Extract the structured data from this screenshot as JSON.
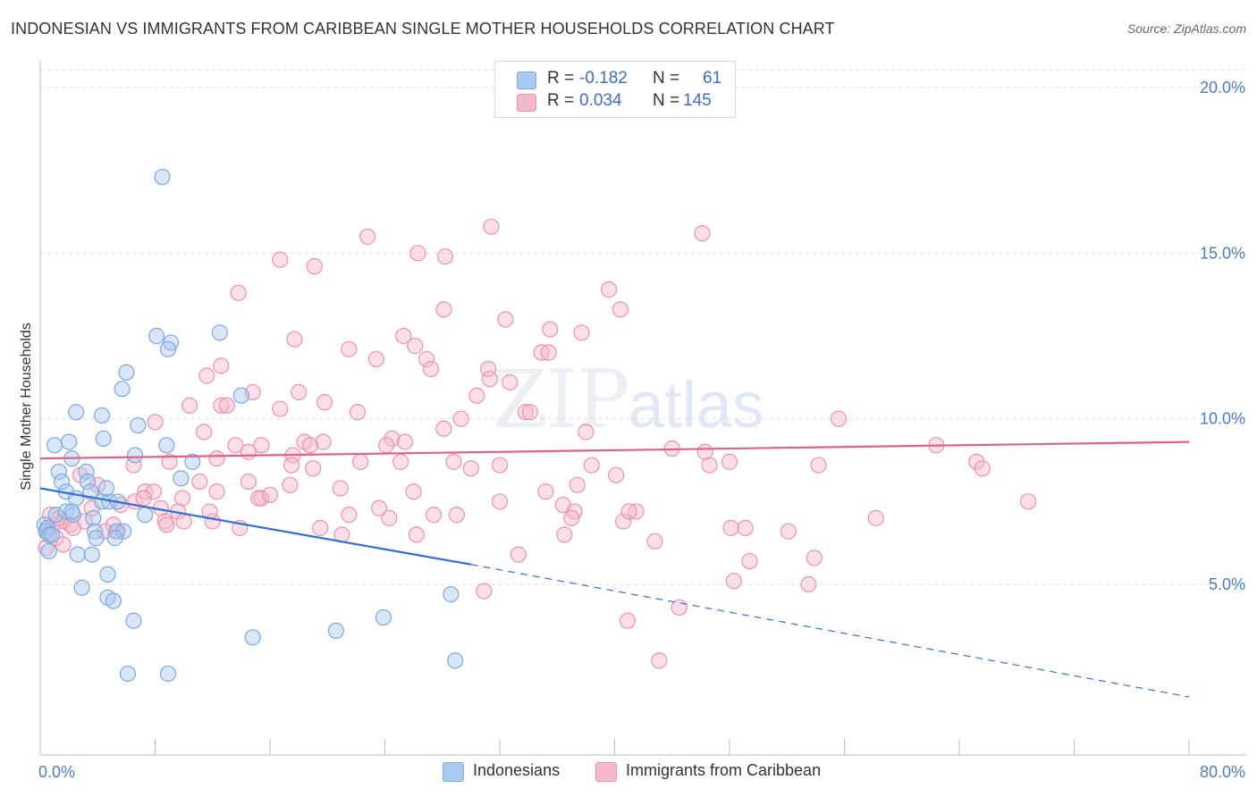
{
  "title": "INDONESIAN VS IMMIGRANTS FROM CARIBBEAN SINGLE MOTHER HOUSEHOLDS CORRELATION CHART",
  "source": "Source: ZipAtlas.com",
  "watermark": {
    "zip": "ZIP",
    "atlas": "atlas"
  },
  "colors": {
    "blue_fill": "#aac8f0",
    "blue_stroke": "#7aa8e0",
    "blue_line": "#2f6fd6",
    "pink_fill": "#f5b8cc",
    "pink_stroke": "#ee8fae",
    "pink_line": "#e0608a",
    "axis_text": "#4a7cc4",
    "grid": "#dcdcdc"
  },
  "stats": {
    "rows": [
      {
        "r_label": "R =",
        "r_value": "-0.182",
        "n_label": "N =",
        "n_value": "61"
      },
      {
        "r_label": "R =",
        "r_value": "0.034",
        "n_label": "N =",
        "n_value": "145"
      }
    ]
  },
  "legend": {
    "items": [
      "Indonesians",
      "Immigrants from Caribbean"
    ]
  },
  "chart_data": {
    "type": "scatter",
    "title": "INDONESIAN VS IMMIGRANTS FROM CARIBBEAN SINGLE MOTHER HOUSEHOLDS CORRELATION CHART",
    "xlabel": "",
    "ylabel": "Single Mother Households",
    "xlim": [
      0,
      80
    ],
    "ylim": [
      0,
      21
    ],
    "x_ticks": [
      "0.0%",
      "80.0%"
    ],
    "y_ticks": [
      "5.0%",
      "10.0%",
      "15.0%",
      "20.0%"
    ],
    "y_tick_values": [
      5,
      10,
      15,
      20
    ],
    "grid": true,
    "legend_position": "bottom-center",
    "series": [
      {
        "name": "Indonesians",
        "color": "#aac8f0",
        "trend": {
          "x": [
            0,
            30
          ],
          "y": [
            7.9,
            5.6
          ],
          "dashed_extension": {
            "x": [
              30,
              80
            ],
            "y": [
              5.6,
              1.6
            ]
          }
        },
        "points": [
          [
            8.5,
            17.3
          ],
          [
            6.0,
            11.4
          ],
          [
            5.7,
            10.9
          ],
          [
            2.5,
            10.2
          ],
          [
            4.3,
            10.1
          ],
          [
            6.8,
            9.8
          ],
          [
            4.4,
            9.4
          ],
          [
            1.0,
            9.2
          ],
          [
            2.0,
            9.3
          ],
          [
            8.8,
            9.2
          ],
          [
            2.2,
            8.8
          ],
          [
            6.6,
            8.9
          ],
          [
            10.6,
            8.7
          ],
          [
            1.3,
            8.4
          ],
          [
            3.2,
            8.4
          ],
          [
            1.5,
            8.1
          ],
          [
            3.3,
            8.1
          ],
          [
            9.8,
            8.2
          ],
          [
            1.8,
            7.8
          ],
          [
            2.5,
            7.6
          ],
          [
            3.5,
            7.8
          ],
          [
            4.3,
            7.5
          ],
          [
            4.8,
            7.5
          ],
          [
            5.4,
            7.5
          ],
          [
            1.1,
            7.1
          ],
          [
            1.8,
            7.2
          ],
          [
            2.3,
            7.1
          ],
          [
            3.7,
            7.0
          ],
          [
            7.3,
            7.1
          ],
          [
            0.3,
            6.8
          ],
          [
            0.5,
            6.7
          ],
          [
            0.4,
            6.6
          ],
          [
            0.6,
            6.5
          ],
          [
            3.8,
            6.6
          ],
          [
            5.3,
            6.6
          ],
          [
            5.8,
            6.6
          ],
          [
            3.9,
            6.4
          ],
          [
            5.2,
            6.4
          ],
          [
            0.6,
            6.0
          ],
          [
            2.6,
            5.9
          ],
          [
            3.6,
            5.9
          ],
          [
            4.7,
            5.3
          ],
          [
            2.9,
            4.9
          ],
          [
            4.7,
            4.6
          ],
          [
            5.1,
            4.5
          ],
          [
            8.1,
            12.5
          ],
          [
            9.1,
            12.3
          ],
          [
            8.9,
            12.1
          ],
          [
            12.5,
            12.6
          ],
          [
            14.0,
            10.7
          ],
          [
            6.5,
            3.9
          ],
          [
            14.8,
            3.4
          ],
          [
            20.6,
            3.6
          ],
          [
            23.9,
            4.0
          ],
          [
            28.6,
            4.7
          ],
          [
            28.9,
            2.7
          ],
          [
            6.1,
            2.3
          ],
          [
            8.9,
            2.3
          ],
          [
            0.8,
            6.5
          ],
          [
            2.2,
            7.2
          ],
          [
            4.6,
            7.9
          ]
        ]
      },
      {
        "name": "Immigrants from Caribbean",
        "color": "#f5b8cc",
        "trend": {
          "x": [
            0,
            80
          ],
          "y": [
            8.8,
            9.3
          ]
        },
        "points": [
          [
            31.4,
            15.8
          ],
          [
            46.1,
            15.6
          ],
          [
            22.8,
            15.5
          ],
          [
            26.3,
            15.0
          ],
          [
            28.2,
            14.9
          ],
          [
            16.7,
            14.8
          ],
          [
            19.1,
            14.6
          ],
          [
            13.8,
            13.8
          ],
          [
            39.6,
            13.9
          ],
          [
            28.1,
            13.3
          ],
          [
            40.4,
            13.3
          ],
          [
            32.4,
            13.0
          ],
          [
            35.5,
            12.7
          ],
          [
            37.7,
            12.6
          ],
          [
            25.3,
            12.5
          ],
          [
            17.7,
            12.4
          ],
          [
            26.1,
            12.2
          ],
          [
            21.5,
            12.1
          ],
          [
            34.9,
            12.0
          ],
          [
            35.4,
            12.0
          ],
          [
            23.4,
            11.8
          ],
          [
            26.9,
            11.8
          ],
          [
            12.6,
            11.6
          ],
          [
            27.2,
            11.5
          ],
          [
            31.2,
            11.5
          ],
          [
            11.6,
            11.3
          ],
          [
            31.3,
            11.2
          ],
          [
            32.7,
            11.1
          ],
          [
            18.0,
            10.8
          ],
          [
            14.8,
            10.8
          ],
          [
            30.4,
            10.7
          ],
          [
            19.8,
            10.5
          ],
          [
            10.4,
            10.4
          ],
          [
            12.6,
            10.4
          ],
          [
            13.0,
            10.4
          ],
          [
            16.7,
            10.3
          ],
          [
            22.1,
            10.2
          ],
          [
            29.3,
            10.0
          ],
          [
            33.8,
            10.2
          ],
          [
            34.1,
            10.2
          ],
          [
            8.0,
            9.9
          ],
          [
            28.1,
            9.7
          ],
          [
            38.0,
            9.6
          ],
          [
            11.4,
            9.6
          ],
          [
            24.5,
            9.4
          ],
          [
            25.4,
            9.3
          ],
          [
            18.4,
            9.3
          ],
          [
            19.7,
            9.3
          ],
          [
            13.6,
            9.2
          ],
          [
            15.4,
            9.2
          ],
          [
            18.8,
            9.2
          ],
          [
            24.1,
            9.2
          ],
          [
            14.5,
            9.0
          ],
          [
            17.6,
            8.9
          ],
          [
            12.3,
            8.8
          ],
          [
            28.8,
            8.7
          ],
          [
            22.3,
            8.7
          ],
          [
            25.1,
            8.7
          ],
          [
            9.0,
            8.7
          ],
          [
            17.5,
            8.6
          ],
          [
            19.0,
            8.5
          ],
          [
            30.0,
            8.5
          ],
          [
            32.0,
            8.6
          ],
          [
            38.4,
            8.6
          ],
          [
            44.0,
            9.1
          ],
          [
            46.3,
            9.0
          ],
          [
            46.6,
            8.6
          ],
          [
            48.0,
            8.7
          ],
          [
            54.2,
            8.6
          ],
          [
            55.6,
            10.0
          ],
          [
            62.4,
            9.2
          ],
          [
            65.2,
            8.7
          ],
          [
            65.6,
            8.5
          ],
          [
            68.8,
            7.5
          ],
          [
            58.2,
            7.0
          ],
          [
            40.1,
            8.3
          ],
          [
            32.0,
            7.5
          ],
          [
            35.2,
            7.8
          ],
          [
            36.4,
            7.4
          ],
          [
            37.2,
            7.2
          ],
          [
            14.5,
            8.1
          ],
          [
            11.1,
            8.1
          ],
          [
            12.3,
            7.8
          ],
          [
            15.4,
            7.6
          ],
          [
            17.4,
            8.0
          ],
          [
            20.9,
            7.9
          ],
          [
            23.6,
            7.3
          ],
          [
            6.5,
            8.6
          ],
          [
            4.0,
            8.0
          ],
          [
            2.8,
            8.3
          ],
          [
            7.3,
            7.8
          ],
          [
            6.6,
            7.5
          ],
          [
            7.9,
            7.8
          ],
          [
            3.6,
            7.3
          ],
          [
            5.6,
            7.4
          ],
          [
            7.2,
            7.6
          ],
          [
            9.9,
            7.6
          ],
          [
            8.4,
            7.3
          ],
          [
            9.6,
            7.2
          ],
          [
            8.7,
            6.9
          ],
          [
            10.0,
            6.9
          ],
          [
            13.9,
            6.7
          ],
          [
            15.2,
            7.6
          ],
          [
            16.0,
            7.7
          ],
          [
            21.5,
            7.1
          ],
          [
            24.3,
            7.0
          ],
          [
            27.4,
            7.1
          ],
          [
            29.0,
            7.1
          ],
          [
            37.0,
            7.0
          ],
          [
            40.6,
            6.9
          ],
          [
            41.5,
            7.2
          ],
          [
            41.0,
            7.2
          ],
          [
            48.1,
            6.7
          ],
          [
            49.1,
            6.7
          ],
          [
            52.1,
            6.6
          ],
          [
            36.5,
            6.5
          ],
          [
            26.2,
            6.5
          ],
          [
            42.8,
            6.3
          ],
          [
            33.3,
            5.9
          ],
          [
            49.4,
            5.7
          ],
          [
            53.9,
            5.8
          ],
          [
            48.3,
            5.1
          ],
          [
            53.5,
            5.0
          ],
          [
            30.9,
            4.8
          ],
          [
            44.5,
            4.3
          ],
          [
            40.9,
            3.9
          ],
          [
            43.1,
            2.7
          ],
          [
            19.5,
            6.7
          ],
          [
            1.6,
            6.9
          ],
          [
            2.1,
            6.8
          ],
          [
            0.9,
            6.8
          ],
          [
            0.5,
            6.6
          ],
          [
            1.1,
            6.4
          ],
          [
            1.3,
            7.0
          ],
          [
            0.7,
            7.1
          ],
          [
            3.1,
            6.9
          ],
          [
            5.1,
            6.8
          ],
          [
            5.4,
            6.6
          ],
          [
            4.5,
            6.6
          ],
          [
            2.3,
            6.7
          ],
          [
            1.6,
            6.2
          ],
          [
            0.4,
            6.1
          ],
          [
            8.8,
            6.8
          ],
          [
            12.0,
            6.9
          ],
          [
            11.8,
            7.2
          ],
          [
            21.0,
            6.5
          ],
          [
            26.0,
            7.8
          ],
          [
            37.4,
            8.0
          ]
        ]
      }
    ]
  }
}
